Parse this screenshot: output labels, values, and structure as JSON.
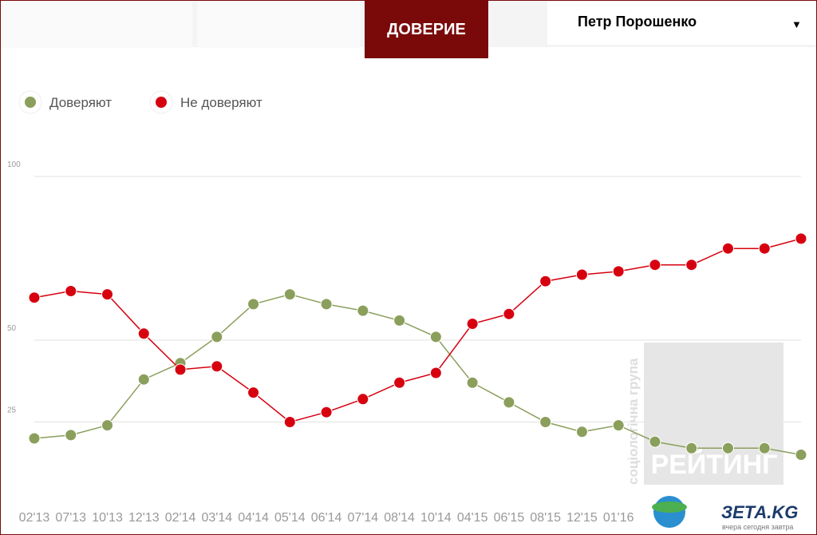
{
  "header": {
    "active_tab": "ДОВЕРИЕ",
    "dropdown": "Петр Порошенко",
    "dropdown_arrow": "▼"
  },
  "chart_data": {
    "type": "line",
    "categories": [
      "02'13",
      "07'13",
      "10'13",
      "12'13",
      "02'14",
      "03'14",
      "04'14",
      "05'14",
      "06'14",
      "07'14",
      "08'14",
      "10'14",
      "04'15",
      "06'15",
      "08'15",
      "12'15",
      "01'16",
      null,
      null,
      null,
      null,
      null
    ],
    "series": [
      {
        "name": "Доверяют",
        "color": "#8b9f5c",
        "values": [
          20,
          21,
          24,
          38,
          43,
          51,
          61,
          64,
          61,
          59,
          56,
          51,
          37,
          31,
          25,
          22,
          24,
          19,
          17,
          17,
          17,
          15
        ]
      },
      {
        "name": "Не доверяют",
        "color": "#d6000f",
        "values": [
          63,
          65,
          64,
          52,
          41,
          42,
          34,
          25,
          28,
          32,
          37,
          40,
          55,
          58,
          68,
          70,
          71,
          73,
          73,
          78,
          78,
          81
        ]
      }
    ],
    "ylim": [
      0,
      100
    ],
    "yticks": [
      100,
      50,
      25
    ],
    "grid": true
  },
  "watermark": {
    "vertical": "соціологічна група",
    "main": "РЕЙТИНГ"
  },
  "logo": {
    "name": "ЗЕТА.KG",
    "slogan": "вчера сегодня завтра"
  }
}
